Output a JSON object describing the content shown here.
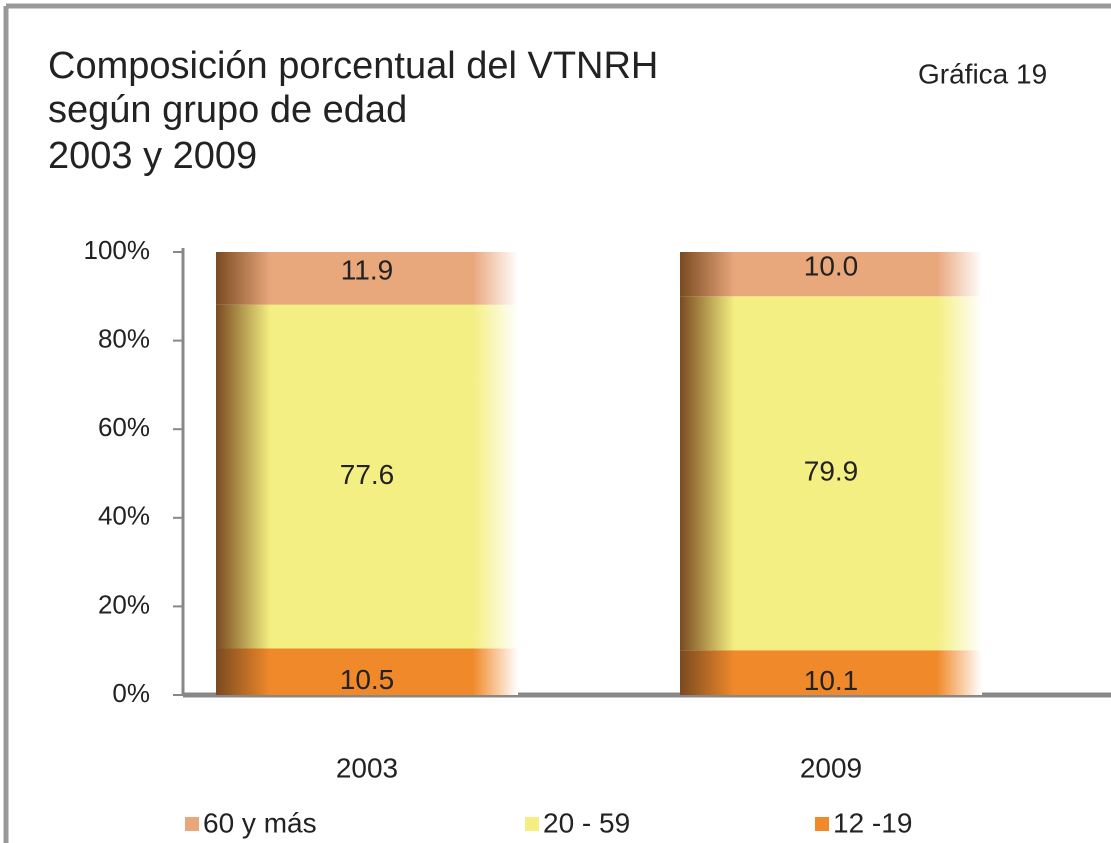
{
  "chart_data": {
    "type": "stacked_bar",
    "title": [
      "Composición porcentual del VTNRH",
      "según grupo de edad",
      "2003 y 2009"
    ],
    "annotation": "Gráfica 19",
    "categories": [
      "2003",
      "2009"
    ],
    "series": [
      {
        "name": "60 y más",
        "color": "#e9a77c",
        "values": [
          11.9,
          10.0
        ],
        "value_labels": [
          "11.9",
          "10.0"
        ]
      },
      {
        "name": "20 - 59",
        "color": "#f4ef82",
        "values": [
          77.6,
          79.9
        ]
      },
      {
        "name": "12 -19",
        "color": "#f0892a",
        "values": [
          10.5,
          10.1
        ]
      }
    ],
    "ylim": [
      0,
      100
    ],
    "yticks": [
      {
        "value": 0,
        "label": "0%"
      },
      {
        "value": 20,
        "label": "20%"
      },
      {
        "value": 40,
        "label": "40%"
      },
      {
        "value": 60,
        "label": "60%"
      },
      {
        "value": 80,
        "label": "80%"
      },
      {
        "value": 100,
        "label": "100%"
      }
    ],
    "grid": false
  }
}
